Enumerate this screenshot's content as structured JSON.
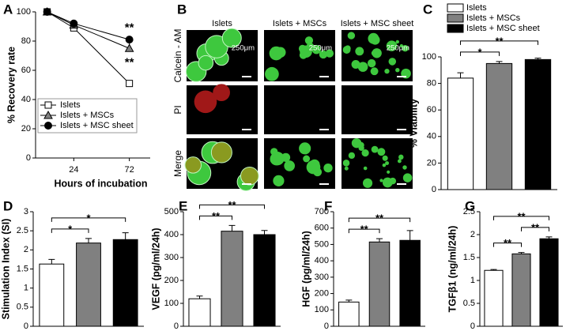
{
  "chart_data": [
    {
      "type": "line",
      "panel": "A",
      "ylabel": "% Recovery rate",
      "xlabel": "Hours of incubation",
      "x": [
        1,
        24,
        72
      ],
      "xlim": [
        -9,
        90
      ],
      "xticks": [
        24,
        72
      ],
      "ylim": [
        0,
        100
      ],
      "yticks": [
        0,
        20,
        40,
        60,
        80,
        100
      ],
      "series": [
        {
          "name": "Islets",
          "color": "#ffffff",
          "marker": "square",
          "values": [
            100,
            89,
            51
          ],
          "errors": [
            0,
            1,
            1.5
          ]
        },
        {
          "name": "Islets + MSCs",
          "color": "#808080",
          "marker": "triangle",
          "values": [
            100,
            91,
            75
          ],
          "errors": [
            0,
            1,
            5
          ]
        },
        {
          "name": "Islets + MSC sheet",
          "color": "#000000",
          "marker": "circle",
          "values": [
            100,
            92,
            81
          ],
          "errors": [
            0,
            0.8,
            1.5
          ]
        }
      ],
      "annotations": [
        {
          "text": "**",
          "x": 72,
          "y": 89
        },
        {
          "text": "**",
          "x": 72,
          "y": 65
        }
      ]
    },
    {
      "type": "image-grid",
      "panel": "B",
      "columns": [
        "Islets",
        "Islets + MSCs",
        "Islets + MSC sheet"
      ],
      "rows": [
        {
          "name": "Calcein - AM",
          "color": "#22bb22"
        },
        {
          "name": "PI",
          "color": "#dd2222"
        },
        {
          "name": "Merge",
          "color": "#000000"
        }
      ],
      "scale_labels": [
        "250μm",
        "250μm",
        "250μm"
      ]
    },
    {
      "type": "bar",
      "panel": "C",
      "ylabel": "% Viability",
      "legend": [
        "Islets",
        "Islets + MSCs",
        "Islets + MSC sheet"
      ],
      "colors": [
        "#ffffff",
        "#808080",
        "#000000"
      ],
      "values": [
        84,
        95,
        98
      ],
      "errors": [
        4,
        1.5,
        1
      ],
      "ylim": [
        0,
        100
      ],
      "yticks": [
        0,
        20,
        40,
        60,
        80,
        100
      ],
      "brackets": [
        {
          "span": [
            0,
            1
          ],
          "label": "*"
        },
        {
          "span": [
            0,
            2
          ],
          "label": "**"
        }
      ]
    },
    {
      "type": "bar",
      "panel": "D",
      "ylabel": "Stimulation Index (SI)",
      "colors": [
        "#ffffff",
        "#808080",
        "#000000"
      ],
      "values": [
        1.63,
        2.18,
        2.27
      ],
      "errors": [
        0.12,
        0.12,
        0.18
      ],
      "ylim": [
        0,
        3
      ],
      "yticks": [
        0,
        0.5,
        1,
        1.5,
        2,
        2.5,
        3
      ],
      "brackets": [
        {
          "span": [
            0,
            1
          ],
          "label": "*"
        },
        {
          "span": [
            0,
            2
          ],
          "label": "*"
        }
      ]
    },
    {
      "type": "bar",
      "panel": "E",
      "ylabel": "VEGF  (pg/ml/24h)",
      "colors": [
        "#ffffff",
        "#808080",
        "#000000"
      ],
      "values": [
        120,
        415,
        400
      ],
      "errors": [
        12,
        25,
        18
      ],
      "ylim": [
        0,
        500
      ],
      "yticks": [
        0,
        100,
        200,
        300,
        400,
        500
      ],
      "brackets": [
        {
          "span": [
            0,
            1
          ],
          "label": "**"
        },
        {
          "span": [
            0,
            2
          ],
          "label": "**"
        }
      ]
    },
    {
      "type": "bar",
      "panel": "F",
      "ylabel": "HGF  (pg/ml/24h)",
      "colors": [
        "#ffffff",
        "#808080",
        "#000000"
      ],
      "values": [
        148,
        515,
        525
      ],
      "errors": [
        12,
        20,
        60
      ],
      "ylim": [
        0,
        700
      ],
      "yticks": [
        0,
        100,
        200,
        300,
        400,
        500,
        600,
        700
      ],
      "brackets": [
        {
          "span": [
            0,
            1
          ],
          "label": "**"
        },
        {
          "span": [
            0,
            2
          ],
          "label": "**"
        }
      ]
    },
    {
      "type": "bar",
      "panel": "G",
      "ylabel": "TGFβ1  (ng/ml/24h)",
      "colors": [
        "#ffffff",
        "#808080",
        "#000000"
      ],
      "values": [
        1.22,
        1.58,
        1.91
      ],
      "errors": [
        0.02,
        0.03,
        0.04
      ],
      "ylim": [
        0,
        2.5
      ],
      "yticks": [
        0,
        0.5,
        1,
        1.5,
        2,
        2.5
      ],
      "brackets": [
        {
          "span": [
            0,
            1
          ],
          "label": "**"
        },
        {
          "span": [
            1,
            2
          ],
          "label": "**"
        },
        {
          "span": [
            0,
            2
          ],
          "label": "**"
        }
      ]
    }
  ]
}
